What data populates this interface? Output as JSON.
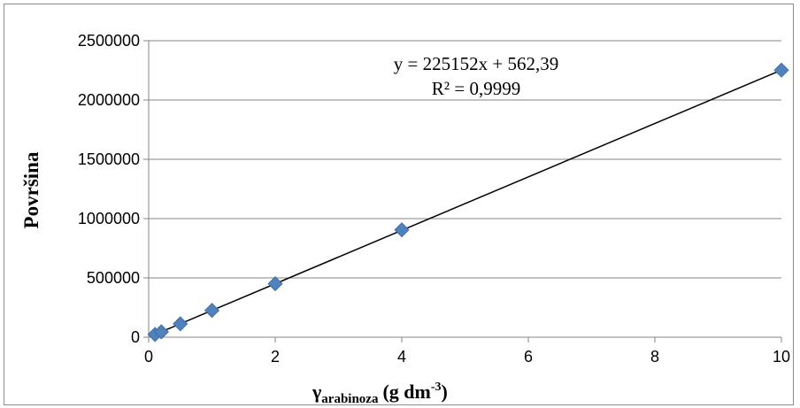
{
  "chart_data": {
    "type": "scatter",
    "title": "",
    "xlabel": "γ",
    "xlabel_sub": "arabinoza",
    "xlabel_unit": "(g dm",
    "xlabel_sup": "-3",
    "xlabel_close": ")",
    "ylabel": "Površina",
    "x_ticks": [
      "0",
      "2",
      "4",
      "6",
      "8",
      "10"
    ],
    "y_ticks": [
      "0",
      "500000",
      "1000000",
      "1500000",
      "2000000",
      "2500000"
    ],
    "y_tick_values": [
      0,
      500000,
      1000000,
      1500000,
      2000000,
      2500000
    ],
    "x_tick_values": [
      0,
      2,
      4,
      6,
      8,
      10
    ],
    "xlim": [
      0,
      10
    ],
    "ylim": [
      0,
      2500000
    ],
    "grid": "horizontal",
    "legend": "none",
    "series": [
      {
        "marker": "diamond",
        "color": "#4f81bd",
        "x": [
          0.1,
          0.2,
          0.5,
          1,
          2,
          4,
          10
        ],
        "y": [
          23000,
          45000,
          113000,
          226000,
          451000,
          905000,
          2252000
        ]
      }
    ],
    "trendline": {
      "slope": 225152,
      "intercept": 562.39,
      "color": "#000000",
      "x_range": [
        0.1,
        10
      ]
    },
    "annotations": {
      "equation": "y = 225152x + 562,39",
      "r_squared": "R² = 0,9999"
    }
  }
}
